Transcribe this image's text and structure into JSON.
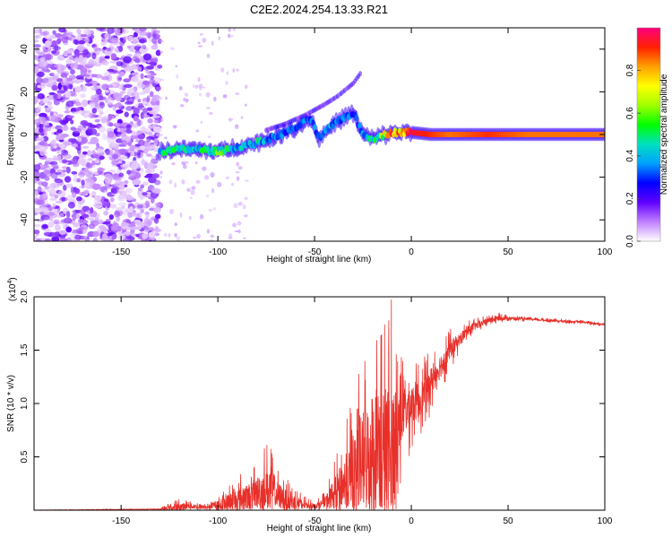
{
  "figure": {
    "title": "C2E2.2024.254.13.33.R21"
  },
  "chart_data": [
    {
      "type": "heatmap",
      "name": "spectrogram",
      "xlabel": "Height of straight line (km)",
      "ylabel": "Frequency (Hz)",
      "xlim": [
        -195,
        100
      ],
      "ylim": [
        -50,
        50
      ],
      "xticks": [
        -150,
        -100,
        -50,
        0,
        50,
        100
      ],
      "yticks": [
        -40,
        -20,
        0,
        20,
        40
      ],
      "colorbar": {
        "label": "Normalized spectral amplitude",
        "range": [
          0.0,
          1.0
        ],
        "ticks": [
          0.0,
          0.2,
          0.4,
          0.6,
          0.8
        ],
        "colors": [
          "#ffffff",
          "#c080ff",
          "#6000ff",
          "#0000ff",
          "#00a0ff",
          "#00e0c0",
          "#00ff00",
          "#a0ff00",
          "#ffff00",
          "#ffa000",
          "#ff2000",
          "#ff0080"
        ]
      },
      "features": {
        "noise_region_x": [
          -195,
          -130
        ],
        "ridge": {
          "x": [
            -130,
            -120,
            -110,
            -100,
            -90,
            -80,
            -70,
            -60,
            -52,
            -48,
            -40,
            -35,
            -30,
            -25,
            -20,
            -10,
            0,
            10,
            20,
            40,
            60,
            80,
            100
          ],
          "freq": [
            -8,
            -7,
            -7,
            -8,
            -6,
            -4,
            -1,
            3,
            8,
            -2,
            5,
            8,
            10,
            0,
            -2,
            1,
            1,
            0,
            0,
            0,
            0,
            0,
            0
          ],
          "amplitude": [
            0.45,
            0.5,
            0.45,
            0.55,
            0.4,
            0.45,
            0.35,
            0.3,
            0.35,
            0.35,
            0.4,
            0.35,
            0.3,
            0.4,
            0.45,
            0.85,
            0.95,
            0.9,
            0.85,
            0.9,
            0.85,
            0.85,
            0.85
          ]
        },
        "branch": {
          "x": [
            -75,
            -65,
            -55,
            -45,
            -38,
            -30,
            -26
          ],
          "freq": [
            2,
            5,
            9,
            14,
            18,
            24,
            29
          ]
        }
      }
    },
    {
      "type": "line",
      "name": "snr",
      "xlabel": "Height of straight line (km)",
      "ylabel": "SNR (10 * v/v)",
      "y_scale_label": "(x10",
      "y_scale_exponent": "4",
      "xlim": [
        -195,
        100
      ],
      "ylim": [
        0,
        2.0
      ],
      "xticks": [
        -150,
        -100,
        -50,
        0,
        50,
        100
      ],
      "yticks": [
        0.5,
        1.0,
        1.5,
        2.0
      ],
      "color": "#e8302a",
      "series_envelope": {
        "x": [
          -195,
          -130,
          -125,
          -120,
          -115,
          -110,
          -105,
          -100,
          -95,
          -90,
          -85,
          -80,
          -78,
          -75,
          -72,
          -70,
          -65,
          -60,
          -55,
          -50,
          -48,
          -45,
          -40,
          -35,
          -32,
          -30,
          -28,
          -25,
          -22,
          -20,
          -18,
          -15,
          -12,
          -10,
          -8,
          -5,
          0,
          5,
          10,
          15,
          20,
          25,
          30,
          40,
          45,
          50,
          60,
          70,
          80,
          90,
          100
        ],
        "baseline": [
          0.0,
          0.01,
          0.02,
          0.03,
          0.04,
          0.03,
          0.03,
          0.05,
          0.06,
          0.1,
          0.12,
          0.15,
          0.18,
          0.2,
          0.2,
          0.15,
          0.1,
          0.07,
          0.05,
          0.04,
          0.05,
          0.07,
          0.15,
          0.25,
          0.3,
          0.35,
          0.4,
          0.45,
          0.5,
          0.55,
          0.55,
          0.5,
          0.45,
          0.55,
          0.75,
          0.9,
          1.0,
          1.05,
          1.2,
          1.35,
          1.5,
          1.6,
          1.7,
          1.78,
          1.8,
          1.8,
          1.79,
          1.78,
          1.77,
          1.76,
          1.74
        ],
        "amplitude": [
          0.004,
          0.006,
          0.05,
          0.08,
          0.05,
          0.05,
          0.03,
          0.07,
          0.2,
          0.25,
          0.25,
          0.35,
          0.4,
          0.45,
          0.45,
          0.3,
          0.2,
          0.15,
          0.08,
          0.04,
          0.06,
          0.1,
          0.3,
          0.5,
          0.65,
          0.8,
          0.9,
          1.05,
          1.2,
          1.35,
          1.45,
          1.55,
          1.6,
          1.5,
          1.0,
          0.6,
          0.45,
          0.35,
          0.3,
          0.25,
          0.2,
          0.12,
          0.08,
          0.05,
          0.05,
          0.03,
          0.02,
          0.02,
          0.02,
          0.02,
          0.02
        ]
      }
    }
  ]
}
